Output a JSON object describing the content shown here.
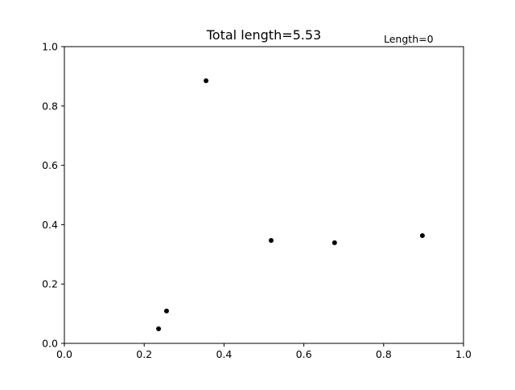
{
  "chart_data": {
    "type": "scatter",
    "title": "Total length=5.53",
    "annotation": "Length=0",
    "xlabel": "",
    "ylabel": "",
    "xlim": [
      0.0,
      1.0
    ],
    "ylim": [
      0.0,
      1.0
    ],
    "x_ticks": [
      "0.0",
      "0.2",
      "0.4",
      "0.6",
      "0.8",
      "1.0"
    ],
    "y_ticks": [
      "0.0",
      "0.2",
      "0.4",
      "0.6",
      "0.8",
      "1.0"
    ],
    "grid": false,
    "marker_color": "#000000",
    "points": [
      {
        "x": 0.355,
        "y": 0.885
      },
      {
        "x": 0.518,
        "y": 0.347
      },
      {
        "x": 0.677,
        "y": 0.339
      },
      {
        "x": 0.897,
        "y": 0.363
      },
      {
        "x": 0.256,
        "y": 0.109
      },
      {
        "x": 0.236,
        "y": 0.049
      }
    ]
  }
}
